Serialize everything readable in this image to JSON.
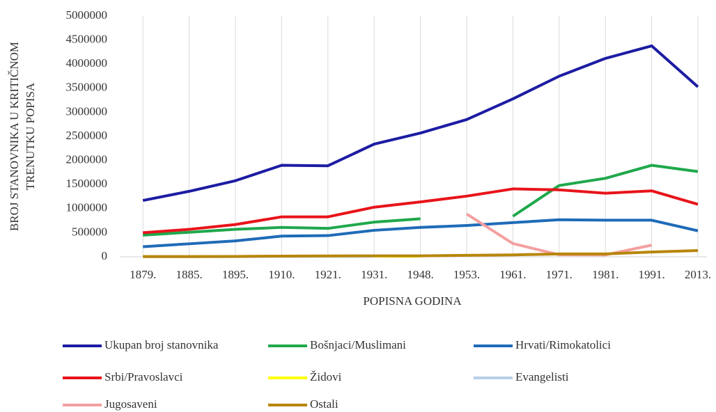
{
  "chart_data": {
    "type": "line",
    "ylabel": [
      "BROJ STANOVNIKA U KRITIČNOM",
      "TRENUTKU POPISA"
    ],
    "xlabel": "POPISNA GODINA",
    "categories": [
      "1879.",
      "1885.",
      "1895.",
      "1910.",
      "1921.",
      "1931.",
      "1948.",
      "1953.",
      "1961.",
      "1971.",
      "1981.",
      "1991.",
      "2013."
    ],
    "ylim": [
      0,
      5000000
    ],
    "yticks": [
      0,
      500000,
      1000000,
      1500000,
      2000000,
      2500000,
      3000000,
      3500000,
      4000000,
      4500000,
      5000000
    ],
    "grid": "x",
    "series": [
      {
        "name": "Ukupan broj stanovnika",
        "color": "#1c1ca3",
        "values": [
          1170000,
          1360000,
          1580000,
          1900000,
          1890000,
          2340000,
          2570000,
          2850000,
          3280000,
          3750000,
          4120000,
          4380000,
          3530000
        ]
      },
      {
        "name": "Bošnjaci/Muslimani",
        "color": "#1fa84c",
        "values": [
          450000,
          510000,
          570000,
          610000,
          590000,
          720000,
          790000,
          null,
          842000,
          1480000,
          1630000,
          1900000,
          1770000
        ]
      },
      {
        "name": "Hrvati/Rimokatolici",
        "color": "#1f6bb8",
        "values": [
          210000,
          270000,
          330000,
          430000,
          440000,
          550000,
          610000,
          650000,
          710000,
          770000,
          760000,
          760000,
          540000
        ]
      },
      {
        "name": "Srbi/Pravoslavci",
        "color": "#e8141a",
        "values": [
          500000,
          570000,
          670000,
          830000,
          830000,
          1030000,
          1140000,
          1260000,
          1410000,
          1390000,
          1320000,
          1370000,
          1090000
        ]
      },
      {
        "name": "Židovi",
        "color": "#ffff00",
        "values": [
          3000,
          5000,
          8000,
          12000,
          12000,
          14000,
          10000,
          null,
          null,
          null,
          null,
          null,
          null
        ]
      },
      {
        "name": "Evangelisti",
        "color": "#b8cfe6",
        "values": [
          1000,
          2000,
          4000,
          8000,
          9000,
          10000,
          null,
          null,
          null,
          null,
          null,
          null,
          null
        ]
      },
      {
        "name": "Jugosaveni",
        "color": "#f4a0a0",
        "values": [
          null,
          null,
          null,
          null,
          null,
          null,
          null,
          890000,
          275000,
          43000,
          40000,
          242000,
          null
        ]
      },
      {
        "name": "Ostali",
        "color": "#b8860b",
        "values": [
          5000,
          6000,
          8000,
          15000,
          18000,
          20000,
          20000,
          30000,
          40000,
          60000,
          60000,
          100000,
          130000
        ]
      }
    ]
  }
}
